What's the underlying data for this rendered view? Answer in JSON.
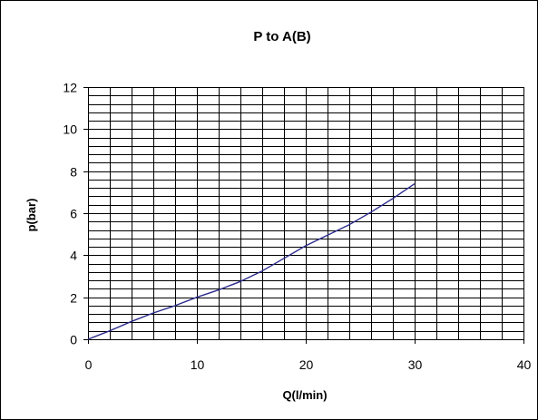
{
  "chart_data": {
    "type": "line",
    "title": "P to A(B)",
    "xlabel": "Q(l/min)",
    "ylabel": "p(bar)",
    "xlim": [
      0,
      40
    ],
    "ylim": [
      0,
      12
    ],
    "x_ticks": [
      0,
      10,
      20,
      30,
      40
    ],
    "y_ticks": [
      0,
      2,
      4,
      6,
      8,
      10,
      12
    ],
    "x_minor_step": 2,
    "y_minor_step": 0.4,
    "grid": true,
    "legend": "none",
    "series": [
      {
        "color": "#2b2b8c",
        "x": [
          0,
          2,
          4,
          6,
          8,
          10,
          12,
          14,
          16,
          18,
          20,
          22,
          24,
          26,
          28,
          30
        ],
        "y": [
          0,
          0.4,
          0.85,
          1.25,
          1.6,
          2.0,
          2.35,
          2.75,
          3.25,
          3.85,
          4.45,
          4.95,
          5.45,
          6.05,
          6.7,
          7.4
        ]
      }
    ]
  }
}
